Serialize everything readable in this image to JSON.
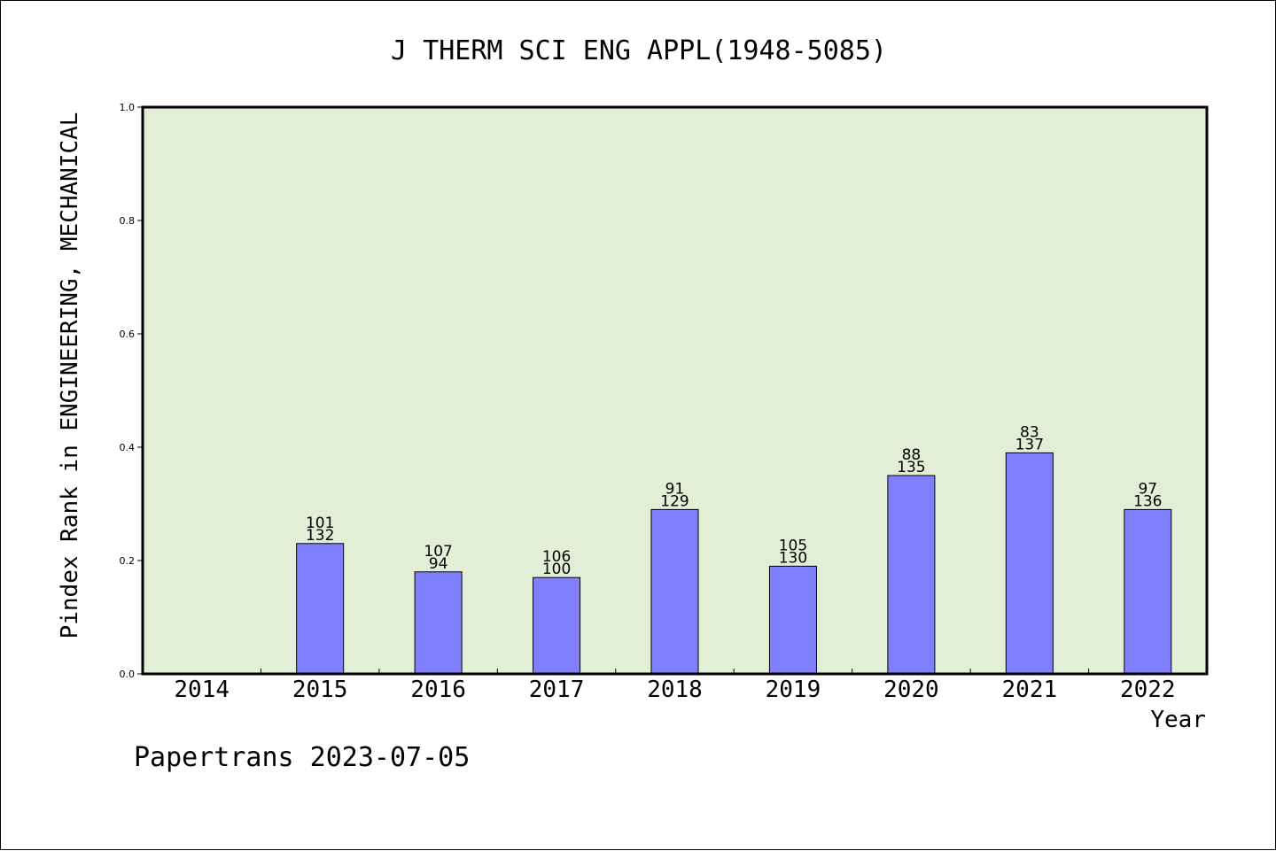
{
  "chart_data": {
    "type": "bar",
    "title": "J THERM SCI ENG APPL(1948-5085)",
    "xlabel": "Year",
    "ylabel": "Pindex Rank in ENGINEERING, MECHANICAL",
    "ylim": [
      0,
      1.0
    ],
    "yticks": [
      "0.0",
      "0.2",
      "0.4",
      "0.6",
      "0.8",
      "1.0"
    ],
    "yticks_values": [
      0,
      0.2,
      0.4,
      0.6,
      0.8,
      1.0
    ],
    "categories": [
      "2014",
      "2015",
      "2016",
      "2017",
      "2018",
      "2019",
      "2020",
      "2021",
      "2022"
    ],
    "values": [
      null,
      0.23,
      0.18,
      0.17,
      0.29,
      0.19,
      0.35,
      0.39,
      0.29
    ],
    "label_top": [
      "",
      "101",
      "107",
      "106",
      "91",
      "105",
      "88",
      "83",
      "97"
    ],
    "label_bottom": [
      "",
      "132",
      "94",
      "100",
      "129",
      "130",
      "135",
      "137",
      "136"
    ],
    "grid": false,
    "colors": {
      "plot_bg": "#e2efd6",
      "bar": "#8080ff",
      "axis": "#000000"
    }
  },
  "footer": {
    "watermark": "Papertrans 2023-07-05"
  }
}
